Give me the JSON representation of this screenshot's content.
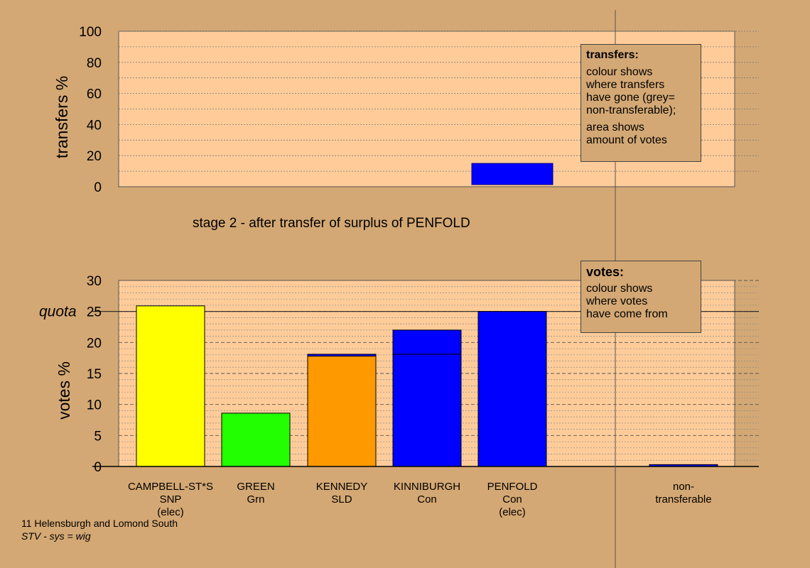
{
  "stage_label": "stage 2 - after transfer of surplus of PENFOLD",
  "footer": {
    "constituency": "11 Helensburgh and Lomond South",
    "system": "STV - sys = wig"
  },
  "legend_transfers": {
    "title": "transfers:",
    "line1": "colour shows\nwhere transfers\nhave gone (grey=\nnon-transferable);",
    "line2": "area shows\namount of votes"
  },
  "legend_votes": {
    "title": "votes:",
    "line1": "colour shows\nwhere votes\nhave come from"
  },
  "colors": {
    "background": "#d4a874",
    "plot_background": "#ffcc99",
    "SNP": "#ffff00",
    "Grn": "#22ff00",
    "SLD": "#ff9900",
    "Con": "#0000ff",
    "transfer_border": "#000080"
  },
  "chart_data": [
    {
      "type": "bar",
      "id": "transfers",
      "ylabel": "transfers %",
      "ylim": [
        0,
        100
      ],
      "yticks": [
        0,
        20,
        40,
        60,
        80,
        100
      ],
      "categories": [
        "CAMPBELL-ST*S",
        "GREEN",
        "KENNEDY",
        "KINNIBURGH",
        "PENFOLD",
        "non-transferable"
      ],
      "values": [
        0,
        0,
        0,
        0,
        15,
        0
      ],
      "colors": [
        "#0000ff",
        "#0000ff",
        "#0000ff",
        "#0000ff",
        "#0000ff",
        "#888888"
      ],
      "grid": true
    },
    {
      "type": "bar",
      "id": "votes",
      "ylabel": "votes %",
      "ylim": [
        0,
        30
      ],
      "yticks": [
        0,
        5,
        10,
        15,
        20,
        25,
        30
      ],
      "quota": 25,
      "quota_label": "quota",
      "categories": [
        {
          "name": "CAMPBELL-ST*S",
          "party": "SNP",
          "note": "(elec)"
        },
        {
          "name": "GREEN",
          "party": "Grn",
          "note": ""
        },
        {
          "name": "KENNEDY",
          "party": "SLD",
          "note": ""
        },
        {
          "name": "KINNIBURGH",
          "party": "Con",
          "note": ""
        },
        {
          "name": "PENFOLD",
          "party": "Con",
          "note": "(elec)"
        },
        {
          "name": "non-\ntransferable",
          "party": "",
          "note": ""
        }
      ],
      "stacks": [
        [
          {
            "value": 25.9,
            "color": "#ffff00"
          }
        ],
        [
          {
            "value": 8.6,
            "color": "#22ff00"
          }
        ],
        [
          {
            "value": 17.8,
            "color": "#ff9900"
          },
          {
            "value": 0.3,
            "color": "#0000ff"
          }
        ],
        [
          {
            "value": 18.1,
            "color": "#0000ff"
          },
          {
            "value": 3.9,
            "color": "#0000ff"
          }
        ],
        [
          {
            "value": 25.0,
            "color": "#0000ff"
          }
        ],
        [
          {
            "value": 0.3,
            "color": "#0000ff"
          }
        ]
      ],
      "grid": true
    }
  ]
}
